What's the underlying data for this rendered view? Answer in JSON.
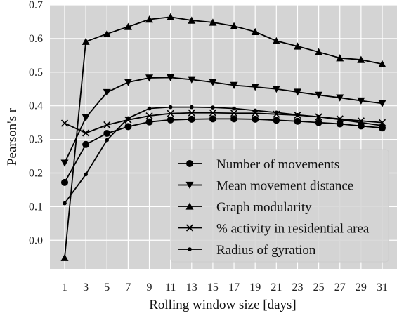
{
  "chart_data": {
    "type": "line",
    "xlabel": "Rolling window size [days]",
    "ylabel": "Pearson's r",
    "x": [
      1,
      3,
      5,
      7,
      9,
      11,
      13,
      15,
      17,
      19,
      21,
      23,
      25,
      27,
      29,
      31
    ],
    "xticks": [
      "1",
      "3",
      "5",
      "7",
      "9",
      "11",
      "13",
      "15",
      "17",
      "19",
      "21",
      "23",
      "25",
      "27",
      "29",
      "31"
    ],
    "yticks": [
      "0.0",
      "0.1",
      "0.2",
      "0.3",
      "0.4",
      "0.5",
      "0.6",
      "0.7"
    ],
    "ylim": [
      -0.085,
      0.7
    ],
    "grid": true,
    "legend_position": "lower-right",
    "background": "#d4d4d4",
    "line_color": "#000000",
    "series": [
      {
        "name": "Number of movements",
        "marker": "circle",
        "values": [
          0.172,
          0.285,
          0.318,
          0.338,
          0.352,
          0.358,
          0.36,
          0.361,
          0.361,
          0.36,
          0.357,
          0.354,
          0.35,
          0.346,
          0.34,
          0.334
        ]
      },
      {
        "name": "Mean movement distance",
        "marker": "triangle-down",
        "values": [
          0.23,
          0.365,
          0.44,
          0.47,
          0.483,
          0.484,
          0.478,
          0.47,
          0.461,
          0.456,
          0.45,
          0.441,
          0.432,
          0.424,
          0.415,
          0.407
        ]
      },
      {
        "name": "Graph modularity",
        "marker": "triangle-up",
        "values": [
          -0.052,
          0.591,
          0.614,
          0.635,
          0.657,
          0.664,
          0.654,
          0.648,
          0.637,
          0.62,
          0.593,
          0.577,
          0.56,
          0.542,
          0.537,
          0.524
        ]
      },
      {
        "name": "% activity in residential area",
        "marker": "x",
        "values": [
          0.348,
          0.319,
          0.343,
          0.358,
          0.37,
          0.377,
          0.379,
          0.379,
          0.378,
          0.378,
          0.375,
          0.372,
          0.367,
          0.361,
          0.355,
          0.35
        ]
      },
      {
        "name": "Radius of gyration",
        "marker": "dot",
        "values": [
          0.11,
          0.196,
          0.298,
          0.363,
          0.392,
          0.396,
          0.396,
          0.395,
          0.392,
          0.386,
          0.38,
          0.373,
          0.367,
          0.359,
          0.35,
          0.341
        ]
      }
    ]
  }
}
